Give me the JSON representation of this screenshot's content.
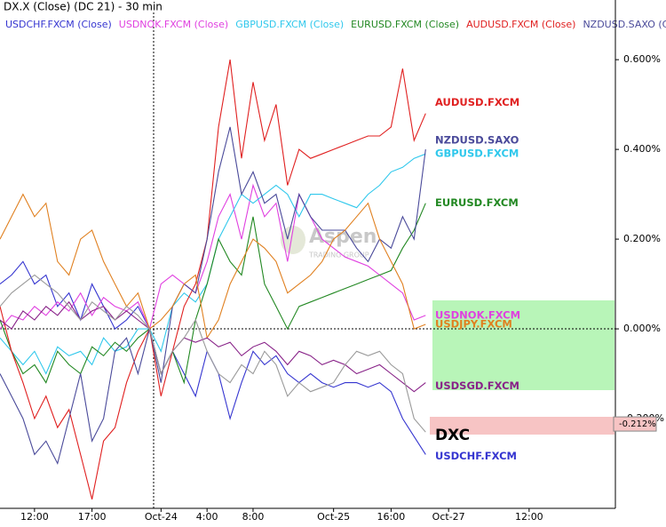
{
  "chart_data": {
    "type": "line",
    "title": "DX.X (Close) (DC 21) - 30 min",
    "watermark": "Aspen",
    "watermark_sub": "TRADING GROUP",
    "x": [
      0,
      2,
      4,
      6,
      8,
      10,
      12,
      14,
      16,
      18,
      20,
      22,
      24,
      26,
      28,
      30,
      32,
      34,
      36,
      38,
      40,
      42,
      44,
      46,
      48,
      50,
      52,
      54,
      56,
      58,
      60,
      62,
      64,
      66,
      68,
      70,
      72,
      74
    ],
    "xlim": [
      0,
      107
    ],
    "xticks": [
      {
        "value": 6,
        "label": "12:00"
      },
      {
        "value": 16,
        "label": "17:00"
      },
      {
        "value": 28,
        "label": "Oct-24"
      },
      {
        "value": 36,
        "label": "4:00"
      },
      {
        "value": 44,
        "label": "8:00"
      },
      {
        "value": 58,
        "label": "Oct-25"
      },
      {
        "value": 68,
        "label": "16:00"
      },
      {
        "value": 78,
        "label": "Oct-27"
      },
      {
        "value": 92,
        "label": "12:00"
      }
    ],
    "ylim": [
      -0.4,
      0.733
    ],
    "yticks": [
      {
        "value": 0.6,
        "label": "0.600%"
      },
      {
        "value": 0.4,
        "label": "0.400%"
      },
      {
        "value": 0.2,
        "label": "0.200%"
      },
      {
        "value": 0,
        "label": "0.000%"
      },
      {
        "value": -0.2,
        "label": "-0.200%"
      }
    ],
    "current_value": -0.212,
    "current_value_label": "-0.212%",
    "series": [
      {
        "name": "USDCHF.FXCM (Close)",
        "label": "USDCHF.FXCM",
        "color": "#3535d0",
        "values": [
          0.1,
          0.12,
          0.15,
          0.1,
          0.12,
          0.05,
          0.08,
          0.02,
          0.1,
          0.05,
          0.0,
          0.02,
          0.05,
          0.0,
          -0.1,
          -0.05,
          -0.1,
          -0.15,
          -0.05,
          -0.1,
          -0.2,
          -0.12,
          -0.05,
          -0.08,
          -0.06,
          -0.1,
          -0.12,
          -0.1,
          -0.12,
          -0.13,
          -0.12,
          -0.12,
          -0.13,
          -0.12,
          -0.14,
          -0.2,
          -0.24,
          -0.28
        ]
      },
      {
        "name": "USDNOK.FXCM (Close)",
        "label": "USDNOK.FXCM",
        "color": "#e040e0",
        "values": [
          0.0,
          0.03,
          0.02,
          0.05,
          0.03,
          0.06,
          0.04,
          0.08,
          0.03,
          0.07,
          0.05,
          0.04,
          0.06,
          0.0,
          0.1,
          0.12,
          0.1,
          0.08,
          0.15,
          0.25,
          0.3,
          0.2,
          0.32,
          0.25,
          0.28,
          0.15,
          0.3,
          0.25,
          0.2,
          0.18,
          0.16,
          0.15,
          0.14,
          0.12,
          0.1,
          0.08,
          0.02,
          0.03
        ]
      },
      {
        "name": "GBPUSD.FXCM (Close)",
        "label": "GBPUSD.FXCM",
        "color": "#30c8ec",
        "values": [
          -0.02,
          -0.05,
          -0.08,
          -0.05,
          -0.1,
          -0.04,
          -0.06,
          -0.05,
          -0.08,
          -0.02,
          -0.05,
          -0.04,
          0.0,
          0.0,
          -0.05,
          0.05,
          0.08,
          0.06,
          0.1,
          0.2,
          0.25,
          0.3,
          0.28,
          0.3,
          0.32,
          0.3,
          0.25,
          0.3,
          0.3,
          0.29,
          0.28,
          0.27,
          0.3,
          0.32,
          0.35,
          0.36,
          0.38,
          0.39
        ]
      },
      {
        "name": "EURUSD.FXCM (Close)",
        "label": "EURUSD.FXCM",
        "color": "#228822",
        "values": [
          0.02,
          -0.05,
          -0.1,
          -0.08,
          -0.12,
          -0.05,
          -0.08,
          -0.1,
          -0.04,
          -0.06,
          -0.03,
          -0.05,
          -0.02,
          0.0,
          -0.1,
          -0.05,
          -0.12,
          0.02,
          0.1,
          0.2,
          0.15,
          0.12,
          0.25,
          0.1,
          0.05,
          0.0,
          0.05,
          0.06,
          0.07,
          0.08,
          0.09,
          0.1,
          0.11,
          0.12,
          0.13,
          0.18,
          0.22,
          0.28
        ]
      },
      {
        "name": "AUDUSD.FXCM (Close)",
        "label": "AUDUSD.FXCM",
        "color": "#e02020",
        "values": [
          0.05,
          -0.05,
          -0.12,
          -0.2,
          -0.15,
          -0.22,
          -0.18,
          -0.28,
          -0.38,
          -0.25,
          -0.22,
          -0.12,
          -0.05,
          0.0,
          -0.15,
          -0.05,
          0.05,
          0.1,
          0.2,
          0.45,
          0.6,
          0.38,
          0.55,
          0.42,
          0.5,
          0.32,
          0.4,
          0.38,
          0.39,
          0.4,
          0.41,
          0.42,
          0.43,
          0.43,
          0.45,
          0.58,
          0.42,
          0.48
        ]
      },
      {
        "name": "NZDUSD.SAXO (Close)",
        "label": "NZDUSD.SAXO",
        "color": "#4a4a9a",
        "values": [
          -0.1,
          -0.15,
          -0.2,
          -0.28,
          -0.25,
          -0.3,
          -0.2,
          -0.1,
          -0.25,
          -0.2,
          -0.05,
          -0.02,
          -0.1,
          0.0,
          -0.12,
          0.05,
          0.1,
          0.08,
          0.2,
          0.35,
          0.45,
          0.3,
          0.35,
          0.28,
          0.3,
          0.2,
          0.3,
          0.25,
          0.22,
          0.22,
          0.22,
          0.18,
          0.15,
          0.2,
          0.18,
          0.25,
          0.2,
          0.4
        ]
      },
      {
        "name": "USDJPY.FXCM (Close)",
        "label": "USDJPY.FXCM",
        "color": "#e08020",
        "values": [
          0.2,
          0.25,
          0.3,
          0.25,
          0.28,
          0.15,
          0.12,
          0.2,
          0.22,
          0.15,
          0.1,
          0.05,
          0.08,
          0.0,
          0.02,
          0.05,
          0.1,
          0.12,
          -0.02,
          0.02,
          0.1,
          0.15,
          0.2,
          0.18,
          0.15,
          0.08,
          0.1,
          0.12,
          0.15,
          0.2,
          0.22,
          0.25,
          0.28,
          0.2,
          0.15,
          0.1,
          0.0,
          0.01
        ]
      },
      {
        "name": "USDSGD.FXCM (Close)",
        "label": "USDSGD.FXCM",
        "color": "#882288",
        "values": [
          0.02,
          0.0,
          0.04,
          0.02,
          0.05,
          0.03,
          0.06,
          0.02,
          0.04,
          0.05,
          0.02,
          0.04,
          0.02,
          0.0,
          -0.1,
          -0.05,
          -0.02,
          -0.03,
          -0.02,
          -0.04,
          -0.03,
          -0.06,
          -0.04,
          -0.03,
          -0.05,
          -0.08,
          -0.05,
          -0.06,
          -0.08,
          -0.07,
          -0.08,
          -0.1,
          -0.09,
          -0.08,
          -0.1,
          -0.12,
          -0.14,
          -0.12
        ]
      },
      {
        "name": "DXC (Close)",
        "label": "DXC",
        "color": "#9a9a9a",
        "values": [
          0.05,
          0.08,
          0.1,
          0.12,
          0.1,
          0.08,
          0.05,
          0.02,
          0.06,
          0.04,
          0.02,
          0.05,
          0.03,
          0.0,
          -0.1,
          -0.05,
          -0.02,
          0.02,
          -0.05,
          -0.1,
          -0.12,
          -0.08,
          -0.1,
          -0.05,
          -0.08,
          -0.15,
          -0.12,
          -0.14,
          -0.13,
          -0.12,
          -0.08,
          -0.05,
          -0.06,
          -0.05,
          -0.08,
          -0.1,
          -0.2,
          -0.23
        ]
      }
    ]
  }
}
